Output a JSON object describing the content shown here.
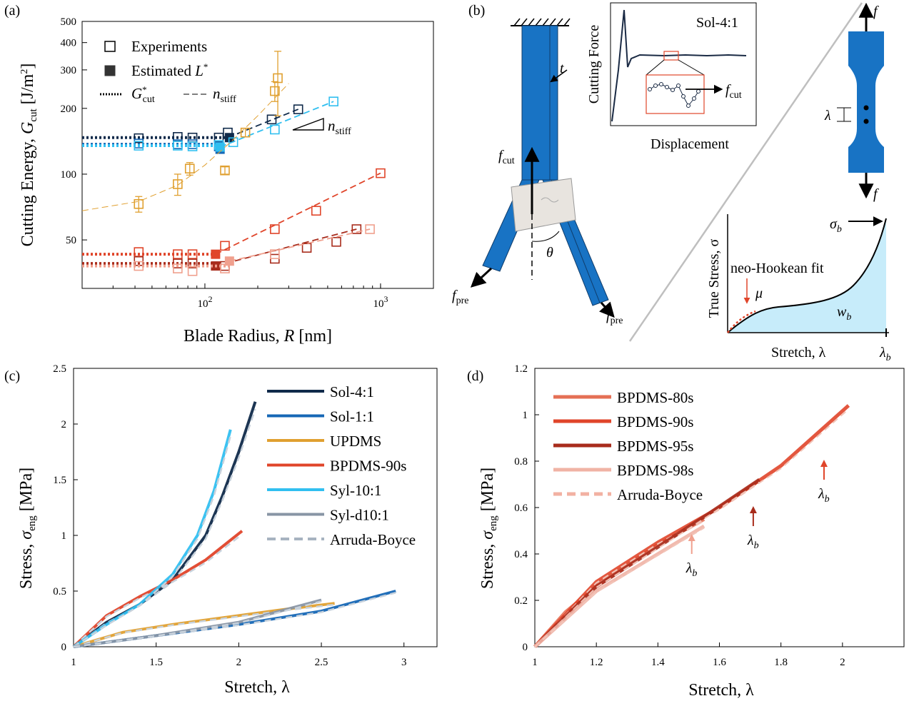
{
  "panels": {
    "a": "(a)",
    "b": "(b)",
    "c": "(c)",
    "d": "(d)"
  },
  "colors": {
    "navy": "#102a4a",
    "blue": "#1667b5",
    "orange": "#e0a030",
    "red": "#e0452a",
    "cyan": "#31bff0",
    "gray": "#8895a5",
    "darkred": "#a82c1c",
    "lightred": "#f0a08e",
    "salmon": "#e57055",
    "lightblue_fill": "#c7ecfa",
    "grey_line": "#bfbfbf"
  },
  "panel_b": {
    "sample_label": "Sol-4:1",
    "y_label": "Cutting Force",
    "x_label": "Displacement",
    "f_cut": "f_cut",
    "f_pre": "f_pre",
    "t": "t",
    "theta": "θ",
    "f": "f",
    "lambda": "λ",
    "stress_y_label": "True Stress, σ",
    "stress_x_label": "Stretch, λ",
    "fit_label": "neo-Hookean fit",
    "mu": "μ",
    "sigma_b": "σ_b",
    "w_b": "w_b",
    "lambda_b": "λ_b"
  },
  "chart_data": [
    {
      "id": "a",
      "type": "scatter",
      "xlabel": "Blade Radius, R [nm]",
      "ylabel": "Cutting Energy, G_cut [J/m²]",
      "xscale": "log",
      "yscale": "log",
      "xlim": [
        20,
        2000
      ],
      "ylim": [
        30,
        500
      ],
      "xticks": [
        {
          "v": 100,
          "label": "10^2"
        },
        {
          "v": 1000,
          "label": "10^3"
        }
      ],
      "yticks": [
        50,
        100,
        200,
        300,
        400,
        500
      ],
      "legend": {
        "experiments": "Experiments",
        "estimated": "Estimated L*",
        "gcut": "G*_cut",
        "nstiff": "n_stiff"
      },
      "slope_label": "n_stiff",
      "series": [
        {
          "color": "#102a4a",
          "x": [
            42,
            70,
            85,
            120,
            135,
            240,
            340
          ],
          "y": [
            146,
            148,
            147,
            147,
            155,
            178,
            198
          ],
          "estimated": {
            "x": 138,
            "y": 147
          },
          "plateau": 147,
          "fit": [
            [
              135,
              147
            ],
            [
              340,
              198
            ]
          ]
        },
        {
          "color": "#1667b5",
          "x": [
            42,
            70,
            85,
            120
          ],
          "y": [
            138,
            137,
            137,
            134
          ],
          "estimated": {
            "x": 122,
            "y": 130
          },
          "plateau": 137,
          "fit": []
        },
        {
          "color": "#31bff0",
          "x": [
            42,
            70,
            85,
            120,
            145,
            250,
            540
          ],
          "y": [
            135,
            135,
            134,
            136,
            140,
            160,
            215
          ],
          "estimated": {
            "x": 122,
            "y": 133
          },
          "plateau": 135,
          "fit": [
            [
              122,
              133
            ],
            [
              540,
              215
            ]
          ]
        },
        {
          "color": "#e0a030",
          "x": [
            42,
            70,
            82,
            130,
            170,
            250,
            260
          ],
          "y": [
            73,
            90,
            106,
            104,
            155,
            240,
            275
          ],
          "err": [
            6,
            10,
            7,
            4,
            7,
            25,
            90
          ],
          "plateau": null,
          "fit": [
            [
              20,
              68
            ],
            [
              42,
              75
            ],
            [
              70,
              89
            ],
            [
              100,
              110
            ],
            [
              140,
              140
            ],
            [
              200,
              185
            ],
            [
              300,
              260
            ]
          ]
        },
        {
          "color": "#e0452a",
          "x": [
            42,
            70,
            85,
            130,
            250,
            430,
            1000
          ],
          "y": [
            44,
            43,
            43,
            47,
            56,
            68,
            101
          ],
          "estimated": {
            "x": 115,
            "y": 43
          },
          "plateau": 43,
          "fit": [
            [
              115,
              43
            ],
            [
              1000,
              101
            ]
          ]
        },
        {
          "color": "#a82c1c",
          "x": [
            42,
            70,
            85,
            130,
            250,
            380,
            560,
            730
          ],
          "y": [
            40,
            39,
            39,
            38,
            41,
            46,
            49,
            56
          ],
          "estimated": {
            "x": 115,
            "y": 38
          },
          "plateau": 39,
          "fit": [
            [
              115,
              38
            ],
            [
              730,
              56
            ]
          ]
        },
        {
          "color": "#f0a08e",
          "x": [
            42,
            70,
            85,
            130,
            250,
            870
          ],
          "y": [
            38,
            37,
            36,
            37,
            43,
            56
          ],
          "estimated": {
            "x": 138,
            "y": 40
          },
          "plateau": 38,
          "fit": [
            [
              138,
              40
            ],
            [
              870,
              56
            ]
          ]
        }
      ]
    },
    {
      "id": "c",
      "type": "line",
      "xlabel": "Stretch, λ",
      "ylabel": "Stress, σ_eng [MPa]",
      "xlim": [
        1,
        3.2
      ],
      "ylim": [
        0,
        2.5
      ],
      "xticks": [
        1,
        1.5,
        2,
        2.5,
        3
      ],
      "yticks": [
        0,
        0.5,
        1,
        1.5,
        2,
        2.5
      ],
      "series": [
        {
          "name": "Sol-4:1",
          "color": "#102a4a",
          "x": [
            1,
            1.2,
            1.4,
            1.6,
            1.8,
            1.9,
            2.0,
            2.1
          ],
          "y": [
            0,
            0.22,
            0.38,
            0.6,
            1.0,
            1.35,
            1.75,
            2.2
          ]
        },
        {
          "name": "Sol-1:1",
          "color": "#1667b5",
          "x": [
            1,
            1.5,
            2.0,
            2.5,
            2.95
          ],
          "y": [
            0,
            0.1,
            0.2,
            0.32,
            0.5
          ]
        },
        {
          "name": "UPDMS",
          "color": "#e0a030",
          "x": [
            1,
            1.3,
            1.6,
            2.0,
            2.3,
            2.58
          ],
          "y": [
            0,
            0.13,
            0.2,
            0.28,
            0.34,
            0.39
          ]
        },
        {
          "name": "BPDMS-90s",
          "color": "#e0452a",
          "x": [
            1,
            1.2,
            1.4,
            1.6,
            1.8,
            2.02
          ],
          "y": [
            0,
            0.28,
            0.45,
            0.6,
            0.78,
            1.04
          ]
        },
        {
          "name": "Syl-10:1",
          "color": "#31bff0",
          "x": [
            1,
            1.2,
            1.4,
            1.6,
            1.75,
            1.85,
            1.95
          ],
          "y": [
            0,
            0.2,
            0.38,
            0.65,
            1.0,
            1.4,
            1.95
          ]
        },
        {
          "name": "Syl-d10:1",
          "color": "#8895a5",
          "x": [
            1,
            1.5,
            2.0,
            2.5
          ],
          "y": [
            0,
            0.1,
            0.22,
            0.42
          ]
        }
      ],
      "fit_name": "Arruda-Boyce"
    },
    {
      "id": "d",
      "type": "line",
      "xlabel": "Stretch, λ",
      "ylabel": "Stress, σ_eng [MPa]",
      "xlim": [
        1,
        2.2
      ],
      "ylim": [
        0,
        1.2
      ],
      "xticks": [
        1,
        1.2,
        1.4,
        1.6,
        1.8,
        2
      ],
      "yticks": [
        0,
        0.2,
        0.4,
        0.6,
        0.8,
        1,
        1.2
      ],
      "series": [
        {
          "name": "BPDMS-80s",
          "color": "#e57055",
          "x": [
            1,
            1.1,
            1.2,
            1.3,
            1.4,
            1.55
          ],
          "y": [
            0,
            0.15,
            0.26,
            0.35,
            0.44,
            0.55
          ]
        },
        {
          "name": "BPDMS-90s",
          "color": "#e0452a",
          "x": [
            1,
            1.2,
            1.4,
            1.6,
            1.8,
            2.02
          ],
          "y": [
            0,
            0.28,
            0.45,
            0.6,
            0.78,
            1.04
          ]
        },
        {
          "name": "BPDMS-95s",
          "color": "#a82c1c",
          "x": [
            1,
            1.2,
            1.4,
            1.55,
            1.73
          ],
          "y": [
            0,
            0.26,
            0.43,
            0.56,
            0.72
          ]
        },
        {
          "name": "BPDMS-98s",
          "color": "#f0b3a5",
          "x": [
            1,
            1.2,
            1.4,
            1.55
          ],
          "y": [
            0,
            0.24,
            0.4,
            0.52
          ]
        }
      ],
      "fit_name": "Arruda-Boyce",
      "breaks": [
        {
          "x": 1.51,
          "y": 0.4,
          "color": "#f0a08e",
          "label": "λ_b"
        },
        {
          "x": 1.71,
          "y": 0.52,
          "color": "#a82c1c",
          "label": "λ_b"
        },
        {
          "x": 1.94,
          "y": 0.72,
          "color": "#e0452a",
          "label": "λ_b"
        }
      ]
    }
  ]
}
